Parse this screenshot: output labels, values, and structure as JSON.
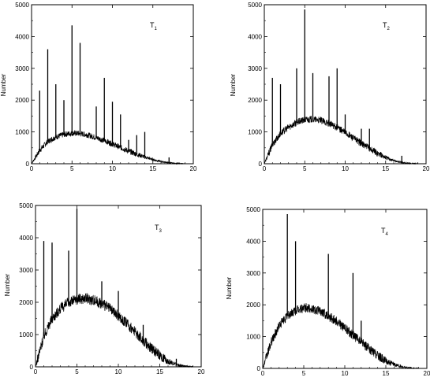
{
  "chart_data": [
    {
      "type": "line",
      "title": "T",
      "title_subscript": "1",
      "ylabel": "Number",
      "xlim": [
        0,
        20
      ],
      "ylim": [
        0,
        5000
      ],
      "xticks": [
        "0",
        "5",
        "10",
        "15",
        "20"
      ],
      "yticks": [
        "0",
        "1000",
        "2000",
        "3000",
        "4000",
        "5000"
      ],
      "series": [
        {
          "kind": "envelope",
          "x": [
            0,
            1,
            2,
            3,
            4,
            5,
            6,
            7,
            8,
            9,
            10,
            11,
            12,
            13,
            14,
            15,
            16,
            17,
            18,
            19
          ],
          "y": [
            0,
            420,
            700,
            840,
            920,
            960,
            950,
            900,
            820,
            730,
            620,
            510,
            400,
            300,
            210,
            130,
            70,
            30,
            8,
            0
          ],
          "noise": 90
        },
        {
          "kind": "spikes",
          "x": [
            1,
            2,
            3,
            4,
            5,
            6,
            8,
            9,
            10,
            11,
            12,
            13,
            14,
            17
          ],
          "y": [
            2300,
            3600,
            2500,
            2000,
            4350,
            3800,
            1800,
            2700,
            1950,
            1550,
            750,
            900,
            1000,
            200
          ]
        }
      ]
    },
    {
      "type": "line",
      "title": "T",
      "title_subscript": "2",
      "ylabel": "Number",
      "xlim": [
        0,
        20
      ],
      "ylim": [
        0,
        5000
      ],
      "xticks": [
        "0",
        "5",
        "10",
        "15",
        "20"
      ],
      "yticks": [
        "0",
        "1000",
        "2000",
        "3000",
        "4000",
        "5000"
      ],
      "series": [
        {
          "kind": "envelope",
          "x": [
            0,
            1,
            2,
            3,
            4,
            5,
            6,
            7,
            8,
            9,
            10,
            11,
            12,
            13,
            14,
            15,
            16,
            17,
            18,
            19
          ],
          "y": [
            0,
            600,
            950,
            1150,
            1300,
            1380,
            1400,
            1360,
            1270,
            1140,
            980,
            810,
            640,
            480,
            330,
            200,
            100,
            40,
            10,
            0
          ],
          "noise": 110
        },
        {
          "kind": "spikes",
          "x": [
            1,
            2,
            4,
            5,
            6,
            8,
            9,
            10,
            12,
            13,
            17
          ],
          "y": [
            2700,
            2500,
            3000,
            4850,
            2850,
            2750,
            3000,
            1550,
            1100,
            1100,
            250
          ]
        }
      ]
    },
    {
      "type": "line",
      "title": "T",
      "title_subscript": "3",
      "ylabel": "Number",
      "xlim": [
        0,
        20
      ],
      "ylim": [
        0,
        5000
      ],
      "xticks": [
        "0",
        "5",
        "10",
        "15",
        "20"
      ],
      "yticks": [
        "0",
        "1000",
        "2000",
        "3000",
        "4000",
        "5000"
      ],
      "series": [
        {
          "kind": "envelope",
          "x": [
            0,
            1,
            2,
            3,
            4,
            5,
            6,
            7,
            8,
            9,
            10,
            11,
            12,
            13,
            14,
            15,
            16,
            17,
            18,
            19
          ],
          "y": [
            0,
            950,
            1500,
            1800,
            2000,
            2100,
            2120,
            2080,
            1960,
            1800,
            1580,
            1340,
            1080,
            820,
            570,
            350,
            180,
            70,
            15,
            0
          ],
          "noise": 170
        },
        {
          "kind": "spikes",
          "x": [
            1,
            2,
            4,
            5,
            8,
            10,
            13,
            17
          ],
          "y": [
            3900,
            3850,
            3600,
            4900,
            2650,
            2350,
            1300,
            250
          ]
        }
      ]
    },
    {
      "type": "line",
      "title": "T",
      "title_subscript": "4",
      "ylabel": "Number",
      "xlim": [
        0,
        20
      ],
      "ylim": [
        0,
        5000
      ],
      "xticks": [
        "0",
        "5",
        "10",
        "15",
        "20"
      ],
      "yticks": [
        "0",
        "1000",
        "2000",
        "3000",
        "4000",
        "5000"
      ],
      "series": [
        {
          "kind": "envelope",
          "x": [
            0,
            1,
            2,
            3,
            4,
            5,
            6,
            7,
            8,
            9,
            10,
            11,
            12,
            13,
            14,
            15,
            16,
            17,
            18,
            19
          ],
          "y": [
            0,
            800,
            1350,
            1650,
            1820,
            1900,
            1880,
            1800,
            1660,
            1480,
            1270,
            1050,
            830,
            610,
            410,
            240,
            120,
            45,
            10,
            0
          ],
          "noise": 150
        },
        {
          "kind": "spikes",
          "x": [
            3,
            4,
            8,
            11,
            12
          ],
          "y": [
            4850,
            4000,
            3600,
            3000,
            1500
          ]
        }
      ]
    }
  ]
}
